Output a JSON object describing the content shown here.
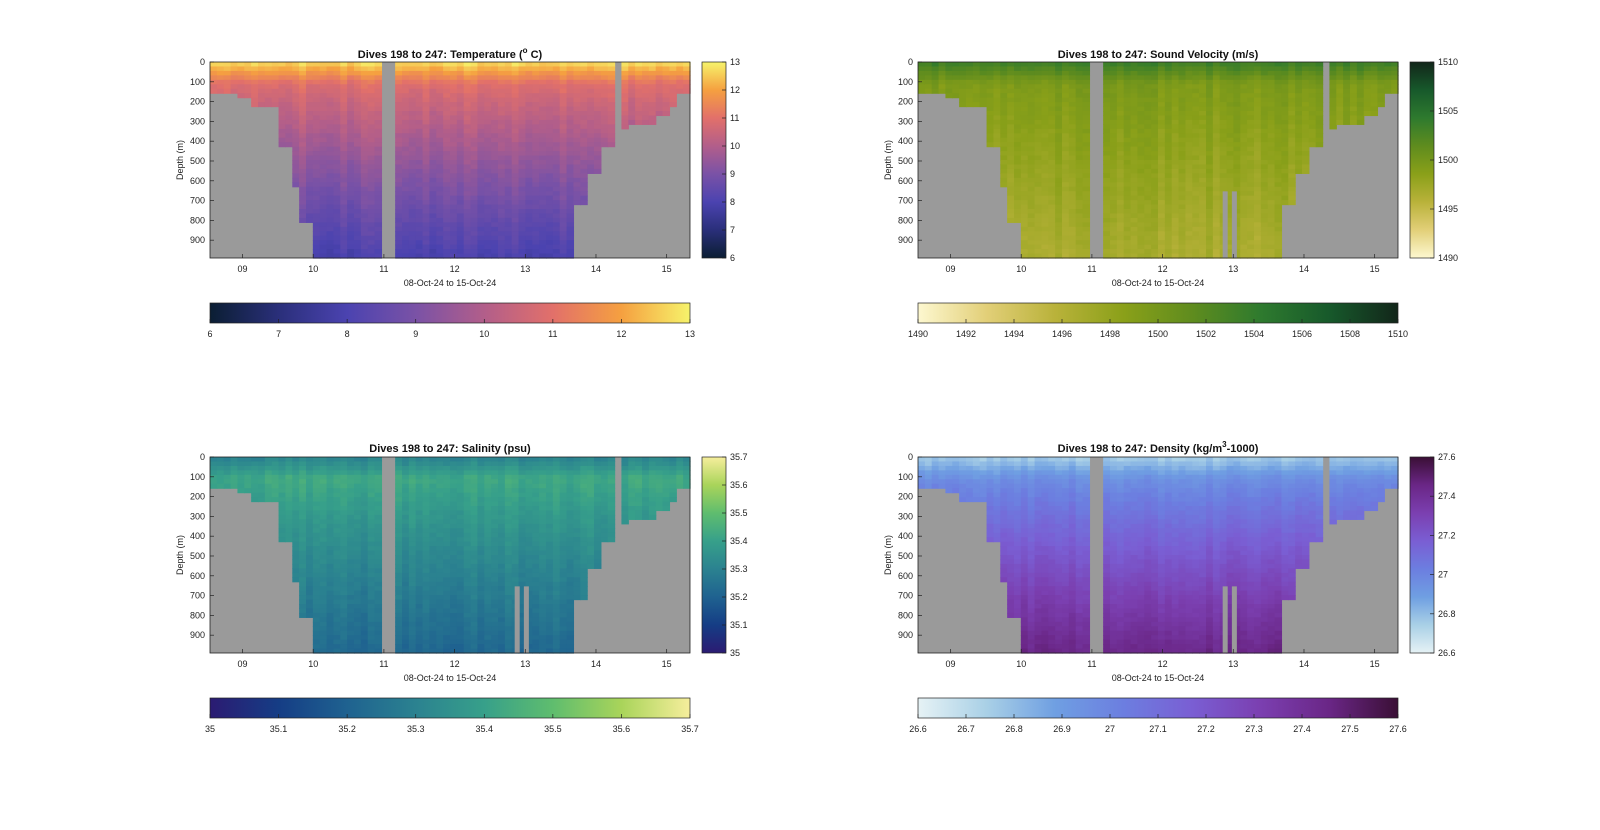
{
  "figure": {
    "dives_label": "Dives 198 to 247",
    "date_range_label": "08-Oct-24 to 15-Oct-24"
  },
  "colors": {
    "bathymetry_fill": "#9a9a9a",
    "background": "#ffffff"
  },
  "chart_data": [
    {
      "type": "heatmap",
      "id": "temperature",
      "title_main": "Dives 198 to 247: Temperature (",
      "title_sup": "o",
      "title_tail": " C)",
      "xlabel": "08-Oct-24 to 15-Oct-24",
      "ylabel": "Depth (m)",
      "x_ticks": [
        "09",
        "10",
        "11",
        "12",
        "13",
        "14",
        "15"
      ],
      "y_ticks": [
        0,
        100,
        200,
        300,
        400,
        500,
        600,
        700,
        800,
        900
      ],
      "xlim": [
        "2024-10-08T13:00",
        "2024-10-15T08:00"
      ],
      "ylim": [
        0,
        990
      ],
      "colorbar_vertical": {
        "ticks": [
          "6",
          "7",
          "8",
          "9",
          "10",
          "11",
          "12",
          "13"
        ],
        "range": [
          6,
          13
        ]
      },
      "colorbar_horizontal": {
        "ticks": [
          "6",
          "7",
          "8",
          "9",
          "10",
          "11",
          "12",
          "13"
        ],
        "range": [
          6,
          13
        ]
      },
      "colormap": [
        "#0b1e33",
        "#2a2f7a",
        "#4b43b0",
        "#7a52a6",
        "#b25e8a",
        "#e2706a",
        "#f5a040",
        "#f6f36b"
      ],
      "profile": {
        "surface_value": 12.8,
        "thermocline_value": 11.0,
        "deep_value": 8.0,
        "thermocline_depth": 110
      },
      "coastal_gaps": [
        "11",
        "14.3"
      ]
    },
    {
      "type": "heatmap",
      "id": "sound_velocity",
      "title_main": "Dives 198 to 247: Sound Velocity (m/s)",
      "title_sup": "",
      "title_tail": "",
      "xlabel": "08-Oct-24 to 15-Oct-24",
      "ylabel": "Depth (m)",
      "x_ticks": [
        "09",
        "10",
        "11",
        "12",
        "13",
        "14",
        "15"
      ],
      "y_ticks": [
        0,
        100,
        200,
        300,
        400,
        500,
        600,
        700,
        800,
        900
      ],
      "xlim": [
        "2024-10-08T13:00",
        "2024-10-15T08:00"
      ],
      "ylim": [
        0,
        990
      ],
      "colorbar_vertical": {
        "ticks": [
          "1490",
          "1495",
          "1500",
          "1505",
          "1510"
        ],
        "range": [
          1490,
          1510
        ]
      },
      "colorbar_horizontal": {
        "ticks": [
          "1490",
          "1492",
          "1494",
          "1496",
          "1498",
          "1500",
          "1502",
          "1504",
          "1506",
          "1508",
          "1510"
        ],
        "range": [
          1490,
          1510
        ]
      },
      "colormap": [
        "#fdf8d0",
        "#e2cf78",
        "#b9b23a",
        "#8aa019",
        "#5f8c1e",
        "#2e7a2e",
        "#17592b",
        "#12261a"
      ],
      "profile": {
        "surface_value": 1503.5,
        "thermocline_value": 1499.5,
        "deep_value": 1496.5,
        "thermocline_depth": 110
      },
      "coastal_gaps": [
        "11",
        "14.3"
      ]
    },
    {
      "type": "heatmap",
      "id": "salinity",
      "title_main": "Dives 198 to 247: Salinity (psu)",
      "title_sup": "",
      "title_tail": "",
      "xlabel": "08-Oct-24 to 15-Oct-24",
      "ylabel": "Depth (m)",
      "x_ticks": [
        "09",
        "10",
        "11",
        "12",
        "13",
        "14",
        "15"
      ],
      "y_ticks": [
        0,
        100,
        200,
        300,
        400,
        500,
        600,
        700,
        800,
        900
      ],
      "xlim": [
        "2024-10-08T13:00",
        "2024-10-15T08:00"
      ],
      "ylim": [
        0,
        990
      ],
      "colorbar_vertical": {
        "ticks": [
          "35",
          "35.1",
          "35.2",
          "35.3",
          "35.4",
          "35.5",
          "35.6",
          "35.7"
        ],
        "range": [
          35,
          35.7
        ]
      },
      "colorbar_horizontal": {
        "ticks": [
          "35",
          "35.1",
          "35.2",
          "35.3",
          "35.4",
          "35.5",
          "35.6",
          "35.7"
        ],
        "range": [
          35,
          35.7
        ]
      },
      "colormap": [
        "#2b1b72",
        "#153d85",
        "#1f6290",
        "#2b8290",
        "#37a08a",
        "#5fbd6e",
        "#a9d45a",
        "#f6ee9c"
      ],
      "profile": {
        "surface_value": 35.3,
        "thermocline_value": 35.43,
        "deep_value": 35.22,
        "thermocline_depth": 110
      },
      "coastal_gaps": [
        "11",
        "14.3"
      ]
    },
    {
      "type": "heatmap",
      "id": "density",
      "title_main": "Dives 198 to 247: Density (kg/m",
      "title_sup": "3",
      "title_tail": "-1000)",
      "xlabel": "08-Oct-24 to 15-Oct-24",
      "ylabel": "Depth (m)",
      "x_ticks": [
        "09",
        "10",
        "11",
        "12",
        "13",
        "14",
        "15"
      ],
      "y_ticks": [
        0,
        100,
        200,
        300,
        400,
        500,
        600,
        700,
        800,
        900
      ],
      "xlim": [
        "2024-10-08T13:00",
        "2024-10-15T08:00"
      ],
      "ylim": [
        0,
        990
      ],
      "colorbar_vertical": {
        "ticks": [
          "26.6",
          "26.8",
          "27",
          "27.2",
          "27.4",
          "27.6"
        ],
        "range": [
          26.6,
          27.6
        ]
      },
      "colorbar_horizontal": {
        "ticks": [
          "26.6",
          "26.7",
          "26.8",
          "26.9",
          "27",
          "27.1",
          "27.2",
          "27.3",
          "27.4",
          "27.5",
          "27.6"
        ],
        "range": [
          26.6,
          27.6
        ]
      },
      "colormap": [
        "#e6f2f5",
        "#a9d0e6",
        "#6f9fe2",
        "#6c7ee0",
        "#7a5ed3",
        "#7b3fb0",
        "#6a2686",
        "#3a0f35"
      ],
      "profile": {
        "surface_value": 26.75,
        "thermocline_value": 26.95,
        "deep_value": 27.45,
        "thermocline_depth": 110
      },
      "coastal_gaps": [
        "11",
        "14.3"
      ]
    }
  ]
}
